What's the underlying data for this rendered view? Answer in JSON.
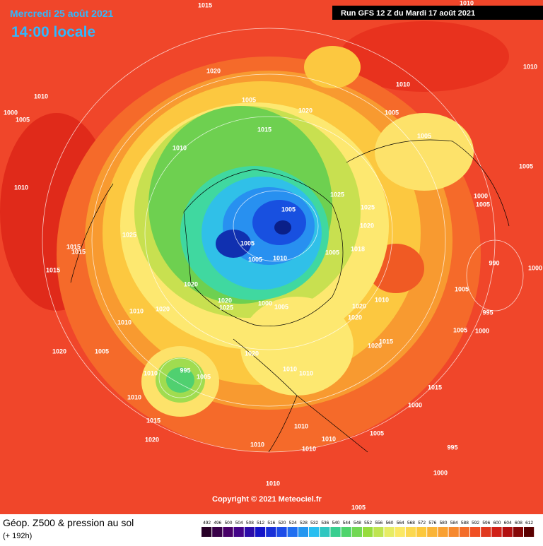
{
  "header": {
    "date": "Mercredi 25 août 2021",
    "time": "14:00 locale",
    "run": "Run GFS 12 Z du Mardi 17 août 2021"
  },
  "copyright": "Copyright © 2021 Meteociel.fr",
  "footer": {
    "title": "Géop. Z500 & pression au sol",
    "range": "(+ 192h)"
  },
  "colorbar": {
    "labels": [
      492,
      496,
      500,
      504,
      508,
      512,
      516,
      520,
      524,
      528,
      532,
      536,
      540,
      544,
      548,
      552,
      556,
      560,
      564,
      568,
      572,
      576,
      580,
      584,
      588,
      592,
      596,
      600,
      604,
      608,
      612
    ]
  },
  "isobars": [
    1015,
    1010,
    1010,
    1010,
    1010,
    1000,
    1005,
    1020,
    1005,
    1020,
    1015,
    1005,
    1005,
    1010,
    1005,
    1010,
    1025,
    1000,
    1005,
    1025,
    1005,
    1020,
    1025,
    1005,
    1018,
    1005,
    1010,
    1005,
    1015,
    1015,
    1015,
    990,
    1000,
    1020,
    1005,
    1010,
    1000,
    1005,
    1020,
    1025,
    1020,
    1020,
    995,
    1010,
    1020,
    1010,
    1005,
    1000,
    1015,
    1020,
    1020,
    1005,
    1020,
    995,
    1005,
    1010,
    1010,
    1010,
    1010,
    1015,
    1000,
    1015,
    1010,
    1005,
    1020,
    1010,
    1010,
    1010,
    995,
    1000,
    1010,
    1005
  ]
}
